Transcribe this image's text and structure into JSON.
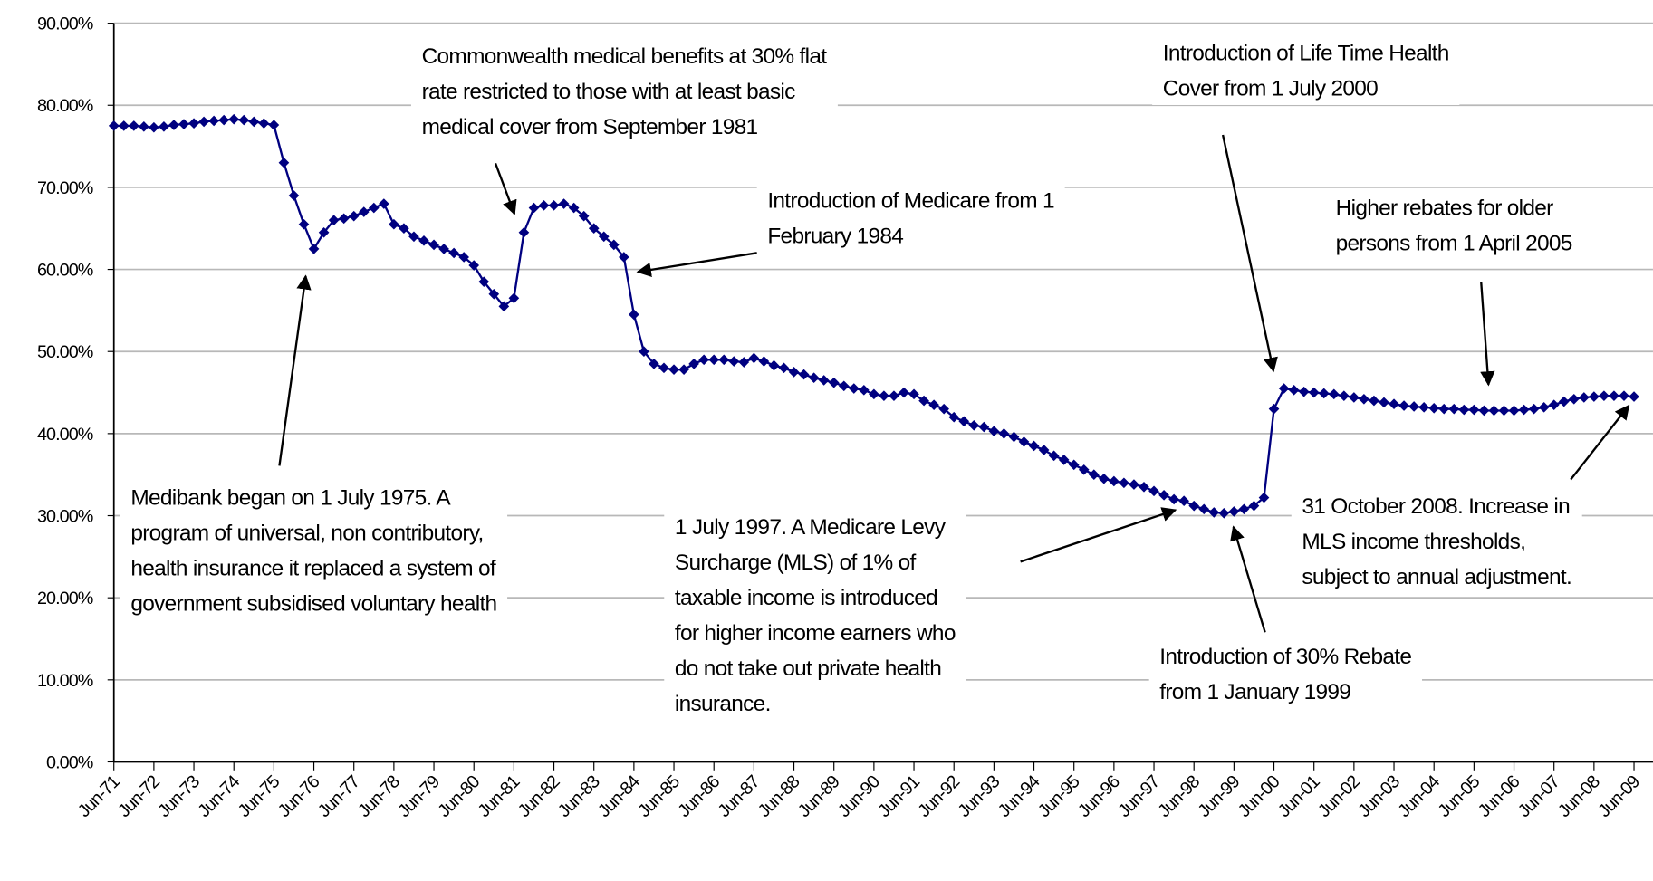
{
  "chart_data": {
    "type": "line",
    "categories": [
      "Jun-71",
      null,
      null,
      null,
      "Jun-72",
      null,
      null,
      null,
      "Jun-73",
      null,
      null,
      null,
      "Jun-74",
      null,
      null,
      null,
      "Jun-75",
      null,
      null,
      null,
      "Jun-76",
      null,
      null,
      null,
      "Jun-77",
      null,
      null,
      null,
      "Jun-78",
      null,
      null,
      null,
      "Jun-79",
      null,
      null,
      null,
      "Jun-80",
      null,
      null,
      null,
      "Jun-81",
      null,
      null,
      null,
      "Jun-82",
      null,
      null,
      null,
      "Jun-83",
      null,
      null,
      null,
      "Jun-84",
      null,
      null,
      null,
      "Jun-85",
      null,
      null,
      null,
      "Jun-86",
      null,
      null,
      null,
      "Jun-87",
      null,
      null,
      null,
      "Jun-88",
      null,
      null,
      null,
      "Jun-89",
      null,
      null,
      null,
      "Jun-90",
      null,
      null,
      null,
      "Jun-91",
      null,
      null,
      null,
      "Jun-92",
      null,
      null,
      null,
      "Jun-93",
      null,
      null,
      null,
      "Jun-94",
      null,
      null,
      null,
      "Jun-95",
      null,
      null,
      null,
      "Jun-96",
      null,
      null,
      null,
      "Jun-97",
      null,
      null,
      null,
      "Jun-98",
      null,
      null,
      null,
      "Jun-99",
      null,
      null,
      null,
      "Jun-00",
      null,
      null,
      null,
      "Jun-01",
      null,
      null,
      null,
      "Jun-02",
      null,
      null,
      null,
      "Jun-03",
      null,
      null,
      null,
      "Jun-04",
      null,
      null,
      null,
      "Jun-05",
      null,
      null,
      null,
      "Jun-06",
      null,
      null,
      null,
      "Jun-07",
      null,
      null,
      null,
      "Jun-08",
      null,
      null,
      null,
      "Jun-09"
    ],
    "series": [
      {
        "color": "#000080",
        "values": [
          77.5,
          77.5,
          77.5,
          77.4,
          77.3,
          77.4,
          77.6,
          77.7,
          77.8,
          78,
          78.1,
          78.2,
          78.3,
          78.2,
          78,
          77.8,
          77.6,
          73,
          69,
          65.5,
          62.5,
          64.5,
          66,
          66.2,
          66.5,
          67,
          67.5,
          68,
          65.5,
          65,
          64,
          63.5,
          63,
          62.5,
          62,
          61.5,
          60.5,
          58.5,
          57,
          55.5,
          56.5,
          64.5,
          67.5,
          67.8,
          67.8,
          68,
          67.5,
          66.5,
          65,
          64,
          63,
          61.5,
          54.5,
          50,
          48.5,
          48,
          47.8,
          47.8,
          48.5,
          49,
          49,
          49,
          48.8,
          48.7,
          49.2,
          48.8,
          48.3,
          48,
          47.5,
          47.2,
          46.8,
          46.5,
          46.2,
          45.8,
          45.5,
          45.3,
          44.8,
          44.6,
          44.6,
          45,
          44.8,
          44,
          43.5,
          43,
          42,
          41.5,
          41,
          40.8,
          40.3,
          40,
          39.6,
          39,
          38.5,
          38,
          37.3,
          36.8,
          36.2,
          35.6,
          35,
          34.5,
          34.2,
          34,
          33.8,
          33.5,
          33,
          32.5,
          32,
          31.8,
          31.2,
          30.8,
          30.4,
          30.3,
          30.5,
          30.8,
          31.2,
          32.2,
          43,
          45.5,
          45.3,
          45.1,
          45,
          44.9,
          44.8,
          44.6,
          44.4,
          44.2,
          44,
          43.8,
          43.6,
          43.4,
          43.3,
          43.2,
          43.1,
          43,
          43,
          42.9,
          42.9,
          42.8,
          42.8,
          42.8,
          42.8,
          42.9,
          43,
          43.2,
          43.5,
          43.9,
          44.2,
          44.4,
          44.5,
          44.6,
          44.6,
          44.6,
          44.5
        ]
      }
    ],
    "ylim": [
      0,
      90
    ],
    "yticks": [
      {
        "value": 0,
        "label": "0.00%"
      },
      {
        "value": 10,
        "label": "10.00%"
      },
      {
        "value": 20,
        "label": "20.00%"
      },
      {
        "value": 30,
        "label": "30.00%"
      },
      {
        "value": 40,
        "label": "40.00%"
      },
      {
        "value": 50,
        "label": "50.00%"
      },
      {
        "value": 60,
        "label": "60.00%"
      },
      {
        "value": 70,
        "label": "70.00%"
      },
      {
        "value": 80,
        "label": "80.00%"
      },
      {
        "value": 90,
        "label": "90.00%"
      }
    ],
    "grid": true,
    "annotations": [
      {
        "lines": [
          "Commonwealth medical benefits at 30% flat",
          "rate restricted to those with at least basic",
          "medical cover from September 1981"
        ]
      },
      {
        "lines": [
          "Introduction of Medicare from 1",
          "February 1984"
        ]
      },
      {
        "lines": [
          "Introduction of Life Time Health",
          "Cover from 1 July 2000"
        ]
      },
      {
        "lines": [
          "Higher rebates for older",
          "persons from 1 April 2005"
        ]
      },
      {
        "lines": [
          "Medibank began on 1 July 1975.  A",
          "program of universal, non contributory,",
          "health insurance it replaced a system of",
          "government subsidised voluntary health"
        ]
      },
      {
        "lines": [
          "1 July 1997. A Medicare Levy",
          "Surcharge (MLS) of 1% of",
          "taxable income is introduced",
          "for higher income earners who",
          "do not take out private health",
          "insurance."
        ]
      },
      {
        "lines": [
          "Introduction of 30% Rebate",
          "from 1 January 1999"
        ]
      },
      {
        "lines": [
          "31 October 2008. Increase in",
          "MLS income thresholds,",
          "subject to annual adjustment."
        ]
      }
    ]
  }
}
